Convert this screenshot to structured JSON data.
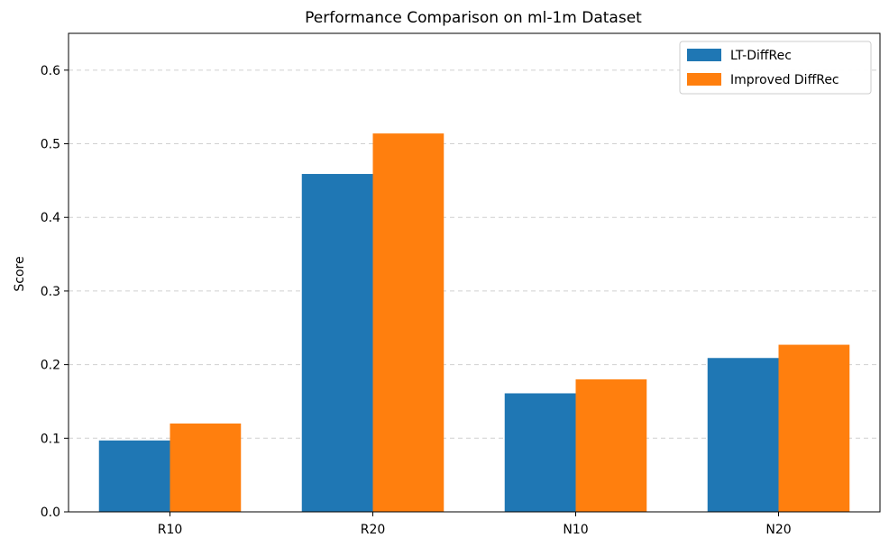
{
  "chart_data": {
    "type": "bar",
    "title": "Performance Comparison on ml-1m Dataset",
    "xlabel": "",
    "ylabel": "Score",
    "categories": [
      "R10",
      "R20",
      "N10",
      "N20"
    ],
    "series": [
      {
        "name": "LT-DiffRec",
        "color": "#1f77b4",
        "values": [
          0.097,
          0.459,
          0.161,
          0.209
        ]
      },
      {
        "name": "Improved DiffRec",
        "color": "#ff7f0e",
        "values": [
          0.12,
          0.514,
          0.18,
          0.227
        ]
      }
    ],
    "ylim": [
      0,
      0.65
    ],
    "yticks": [
      0.0,
      0.1,
      0.2,
      0.3,
      0.4,
      0.5,
      0.6
    ],
    "ytick_labels": [
      "0.0",
      "0.1",
      "0.2",
      "0.3",
      "0.4",
      "0.5",
      "0.6"
    ],
    "grid": {
      "y": true,
      "x": false,
      "style": "dashed"
    },
    "legend_position": "top-right"
  }
}
